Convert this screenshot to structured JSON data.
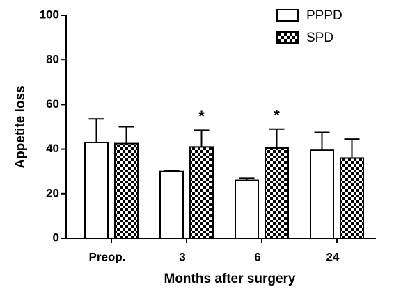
{
  "chart_data": {
    "type": "bar",
    "xlabel": "Months after surgery",
    "ylabel": "Appetite loss",
    "categories": [
      "Preop.",
      "3",
      "6",
      "24"
    ],
    "series": [
      {
        "name": "PPPD",
        "color": "#ffffff",
        "values": [
          43,
          30,
          26,
          39.5
        ],
        "errors": [
          10.5,
          0.5,
          1,
          8
        ]
      },
      {
        "name": "SPD",
        "color": "#000000",
        "pattern": "checkerboard",
        "values": [
          42.5,
          41,
          40.5,
          36
        ],
        "errors": [
          7.5,
          7.5,
          8.5,
          8.5
        ]
      }
    ],
    "annotations": [
      {
        "text": "*",
        "category": 1,
        "series": 1
      },
      {
        "text": "*",
        "category": 2,
        "series": 1
      }
    ],
    "ylim": [
      0,
      100
    ],
    "yticks": [
      0,
      20,
      40,
      60,
      80,
      100
    ],
    "grid": false,
    "legend": "top-right"
  }
}
